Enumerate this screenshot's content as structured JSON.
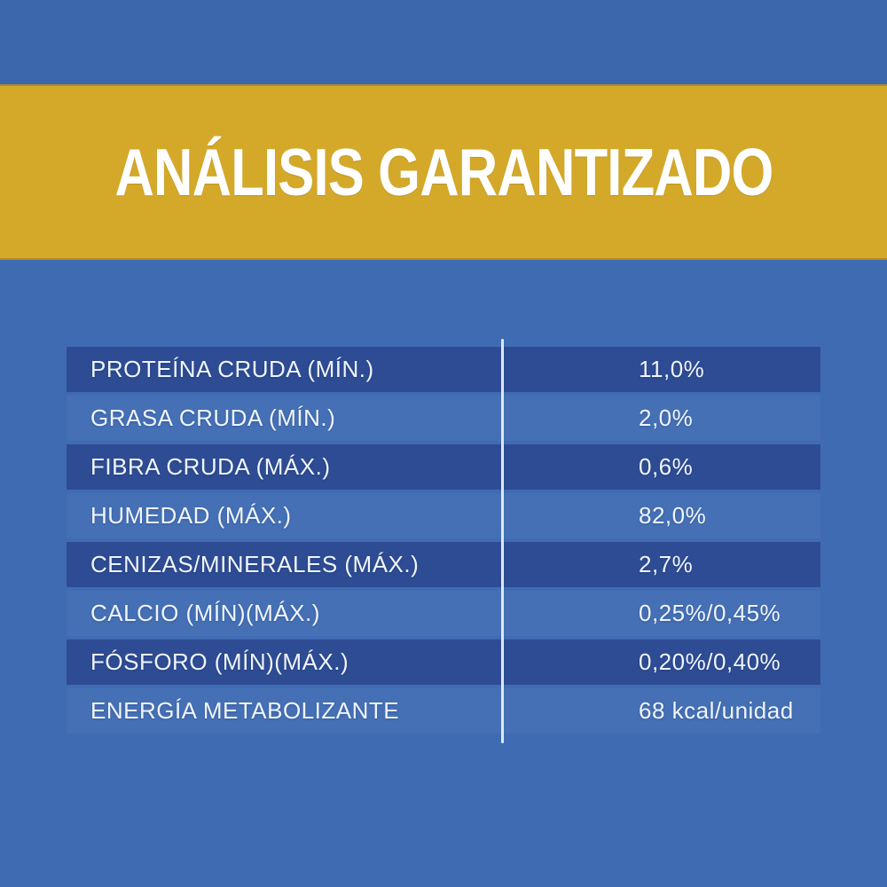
{
  "banner": {
    "title": "ANÁLISIS GARANTIZADO"
  },
  "table": {
    "rows": [
      {
        "label": "PROTEÍNA CRUDA (MÍN.)",
        "value": "11,0%"
      },
      {
        "label": "GRASA CRUDA (MÍN.)",
        "value": "2,0%"
      },
      {
        "label": "FIBRA CRUDA (MÁX.)",
        "value": "0,6%"
      },
      {
        "label": "HUMEDAD (MÁX.)",
        "value": "82,0%"
      },
      {
        "label": "CENIZAS/MINERALES (MÁX.)",
        "value": "2,7%"
      },
      {
        "label": "CALCIO (MÍN)(MÁX.)",
        "value": "0,25%/0,45%"
      },
      {
        "label": "FÓSFORO (MÍN)(MÁX.)",
        "value": "0,20%/0,40%"
      },
      {
        "label": "ENERGÍA METABOLIZANTE",
        "value": "68 kcal/unidad"
      }
    ]
  },
  "colors": {
    "top_band": "#3d67ad",
    "banner_bg": "#d4a92a",
    "body_bg": "#3f6bb3",
    "row_dark": "#2e4c94",
    "row_light": "#4570b5",
    "divider": "#e7effb",
    "table_text": "#f0f5fd",
    "title_text": "#ffffff"
  }
}
